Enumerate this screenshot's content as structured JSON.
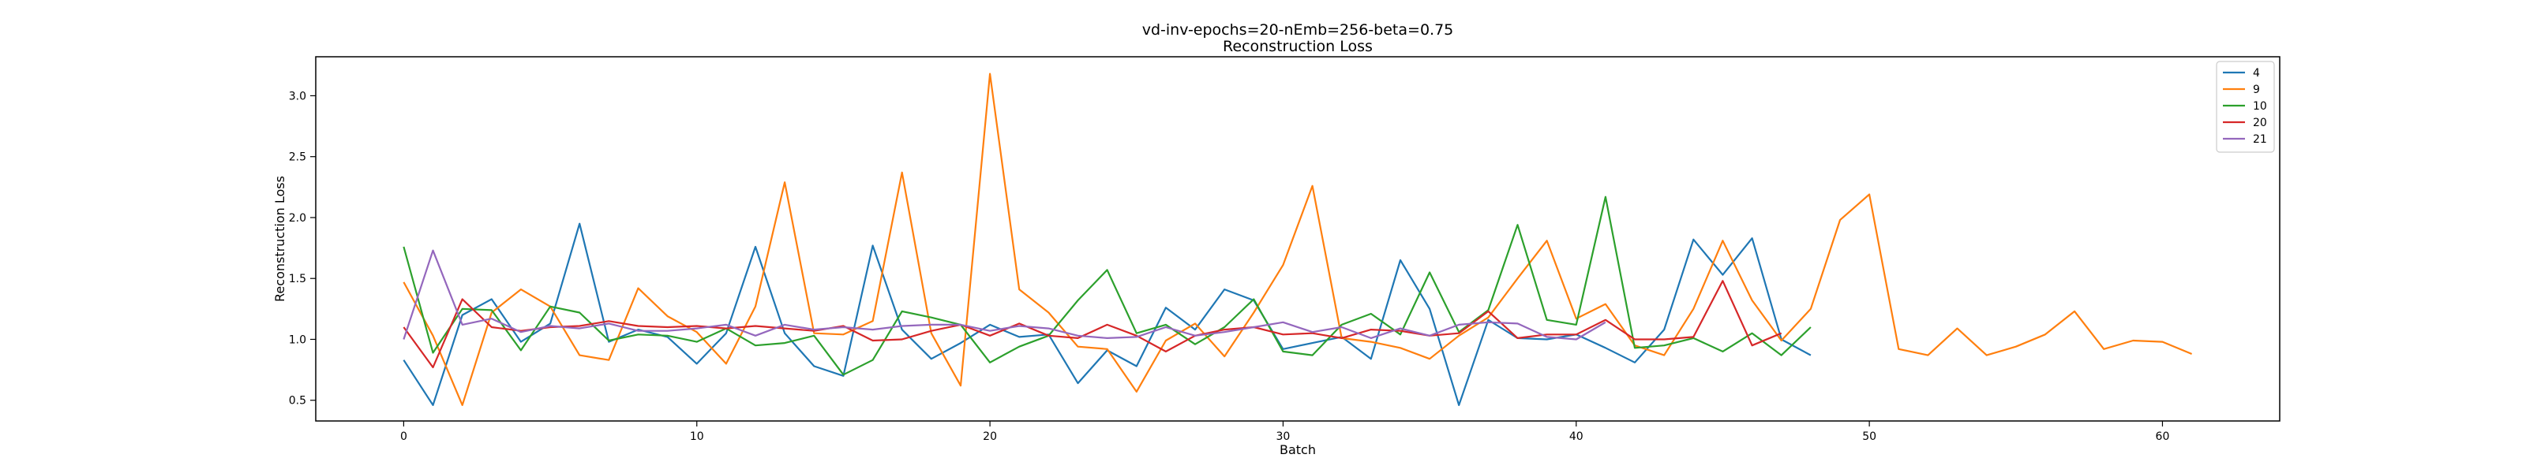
{
  "chart_data": {
    "type": "line",
    "title": "vd-inv-epochs=20-nEmb=256-beta=0.75",
    "subtitle": "Reconstruction Loss",
    "xlabel": "Batch",
    "ylabel": "Reconstruction Loss",
    "xlim": [
      -3,
      64
    ],
    "ylim": [
      0.33,
      3.32
    ],
    "xticks": [
      0,
      10,
      20,
      30,
      40,
      50,
      60
    ],
    "yticks": [
      0.5,
      1.0,
      1.5,
      2.0,
      2.5,
      3.0
    ],
    "grid": false,
    "legend_position": "top-right",
    "series": [
      {
        "name": "4",
        "color": "#1f77b4",
        "values": [
          0.83,
          0.46,
          1.2,
          1.33,
          0.98,
          1.13,
          1.95,
          0.98,
          1.08,
          1.02,
          0.8,
          1.05,
          1.76,
          1.05,
          0.78,
          0.7,
          1.77,
          1.08,
          0.84,
          0.97,
          1.12,
          1.02,
          1.04,
          0.64,
          0.91,
          0.78,
          1.26,
          1.08,
          1.41,
          1.32,
          0.92,
          0.97,
          1.02,
          0.84,
          1.65,
          1.25,
          0.46,
          1.16,
          1.01,
          1.0,
          1.04,
          0.93,
          0.81,
          1.08,
          1.82,
          1.53,
          1.83,
          1.0,
          0.87
        ]
      },
      {
        "name": "9",
        "color": "#ff7f0e",
        "values": [
          1.47,
          1.03,
          0.46,
          1.22,
          1.41,
          1.27,
          0.87,
          0.83,
          1.42,
          1.19,
          1.06,
          0.8,
          1.27,
          2.29,
          1.05,
          1.04,
          1.15,
          2.37,
          1.05,
          0.62,
          3.18,
          1.41,
          1.22,
          0.94,
          0.92,
          0.57,
          0.99,
          1.13,
          0.86,
          1.22,
          1.61,
          2.26,
          1.01,
          0.98,
          0.93,
          0.84,
          1.03,
          1.18,
          1.5,
          1.81,
          1.17,
          1.29,
          0.95,
          0.87,
          1.25,
          1.81,
          1.32,
          0.99,
          1.25,
          1.98,
          2.19,
          0.92,
          0.87,
          1.09,
          0.87,
          0.94,
          1.04,
          1.23,
          0.92,
          0.99,
          0.98,
          0.88
        ]
      },
      {
        "name": "10",
        "color": "#2ca02c",
        "values": [
          1.76,
          0.89,
          1.25,
          1.24,
          0.91,
          1.27,
          1.22,
          0.99,
          1.04,
          1.03,
          0.98,
          1.09,
          0.95,
          0.97,
          1.03,
          0.71,
          0.83,
          1.23,
          1.18,
          1.12,
          0.81,
          0.94,
          1.03,
          1.32,
          1.57,
          1.05,
          1.12,
          0.96,
          1.1,
          1.33,
          0.9,
          0.87,
          1.12,
          1.21,
          1.04,
          1.55,
          1.06,
          1.24,
          1.94,
          1.16,
          1.12,
          2.17,
          0.93,
          0.95,
          1.01,
          0.9,
          1.05,
          0.87,
          1.1
        ]
      },
      {
        "name": "20",
        "color": "#d62728",
        "values": [
          1.1,
          0.77,
          1.33,
          1.1,
          1.07,
          1.1,
          1.11,
          1.15,
          1.11,
          1.1,
          1.11,
          1.09,
          1.11,
          1.09,
          1.07,
          1.11,
          0.99,
          1.0,
          1.07,
          1.12,
          1.03,
          1.13,
          1.03,
          1.01,
          1.12,
          1.03,
          0.9,
          1.03,
          1.08,
          1.1,
          1.04,
          1.05,
          1.01,
          1.08,
          1.07,
          1.03,
          1.05,
          1.23,
          1.01,
          1.04,
          1.04,
          1.16,
          1.0,
          1.0,
          1.02,
          1.48,
          0.95,
          1.05
        ]
      },
      {
        "name": "21",
        "color": "#9467bd",
        "values": [
          1.0,
          1.73,
          1.12,
          1.17,
          1.06,
          1.11,
          1.09,
          1.13,
          1.07,
          1.07,
          1.09,
          1.12,
          1.03,
          1.12,
          1.08,
          1.1,
          1.08,
          1.11,
          1.12,
          1.12,
          1.07,
          1.11,
          1.09,
          1.03,
          1.01,
          1.02,
          1.1,
          1.03,
          1.06,
          1.1,
          1.14,
          1.06,
          1.1,
          1.01,
          1.09,
          1.03,
          1.12,
          1.14,
          1.13,
          1.02,
          1.0,
          1.14
        ]
      }
    ]
  }
}
